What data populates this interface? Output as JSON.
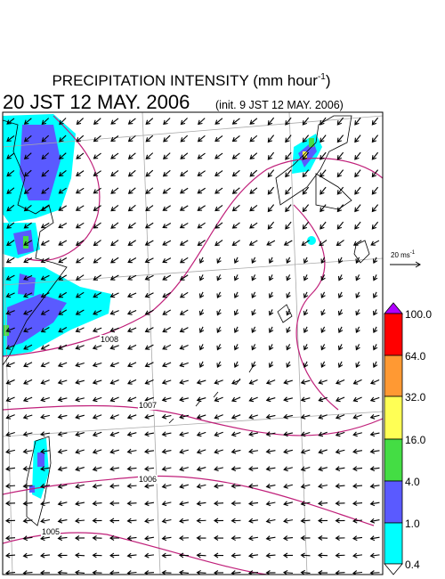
{
  "header": {
    "title": "PRECIPITATION INTENSITY (mm hour",
    "title_sup": "-1",
    "title_end": ")",
    "valid_time": "20 JST 12 MAY. 2006",
    "init_time": "(init. 9 JST 12 MAY. 2006)"
  },
  "wind_legend": {
    "label": "20 ms",
    "label_sup": "-1"
  },
  "isobars": [
    {
      "label": "1008"
    },
    {
      "label": "1007"
    },
    {
      "label": "1006"
    },
    {
      "label": "1005"
    }
  ],
  "colorbar": {
    "labels": [
      "100.0",
      "64.0",
      "32.0",
      "16.0",
      "4.0",
      "1.0",
      "0.4"
    ]
  }
}
